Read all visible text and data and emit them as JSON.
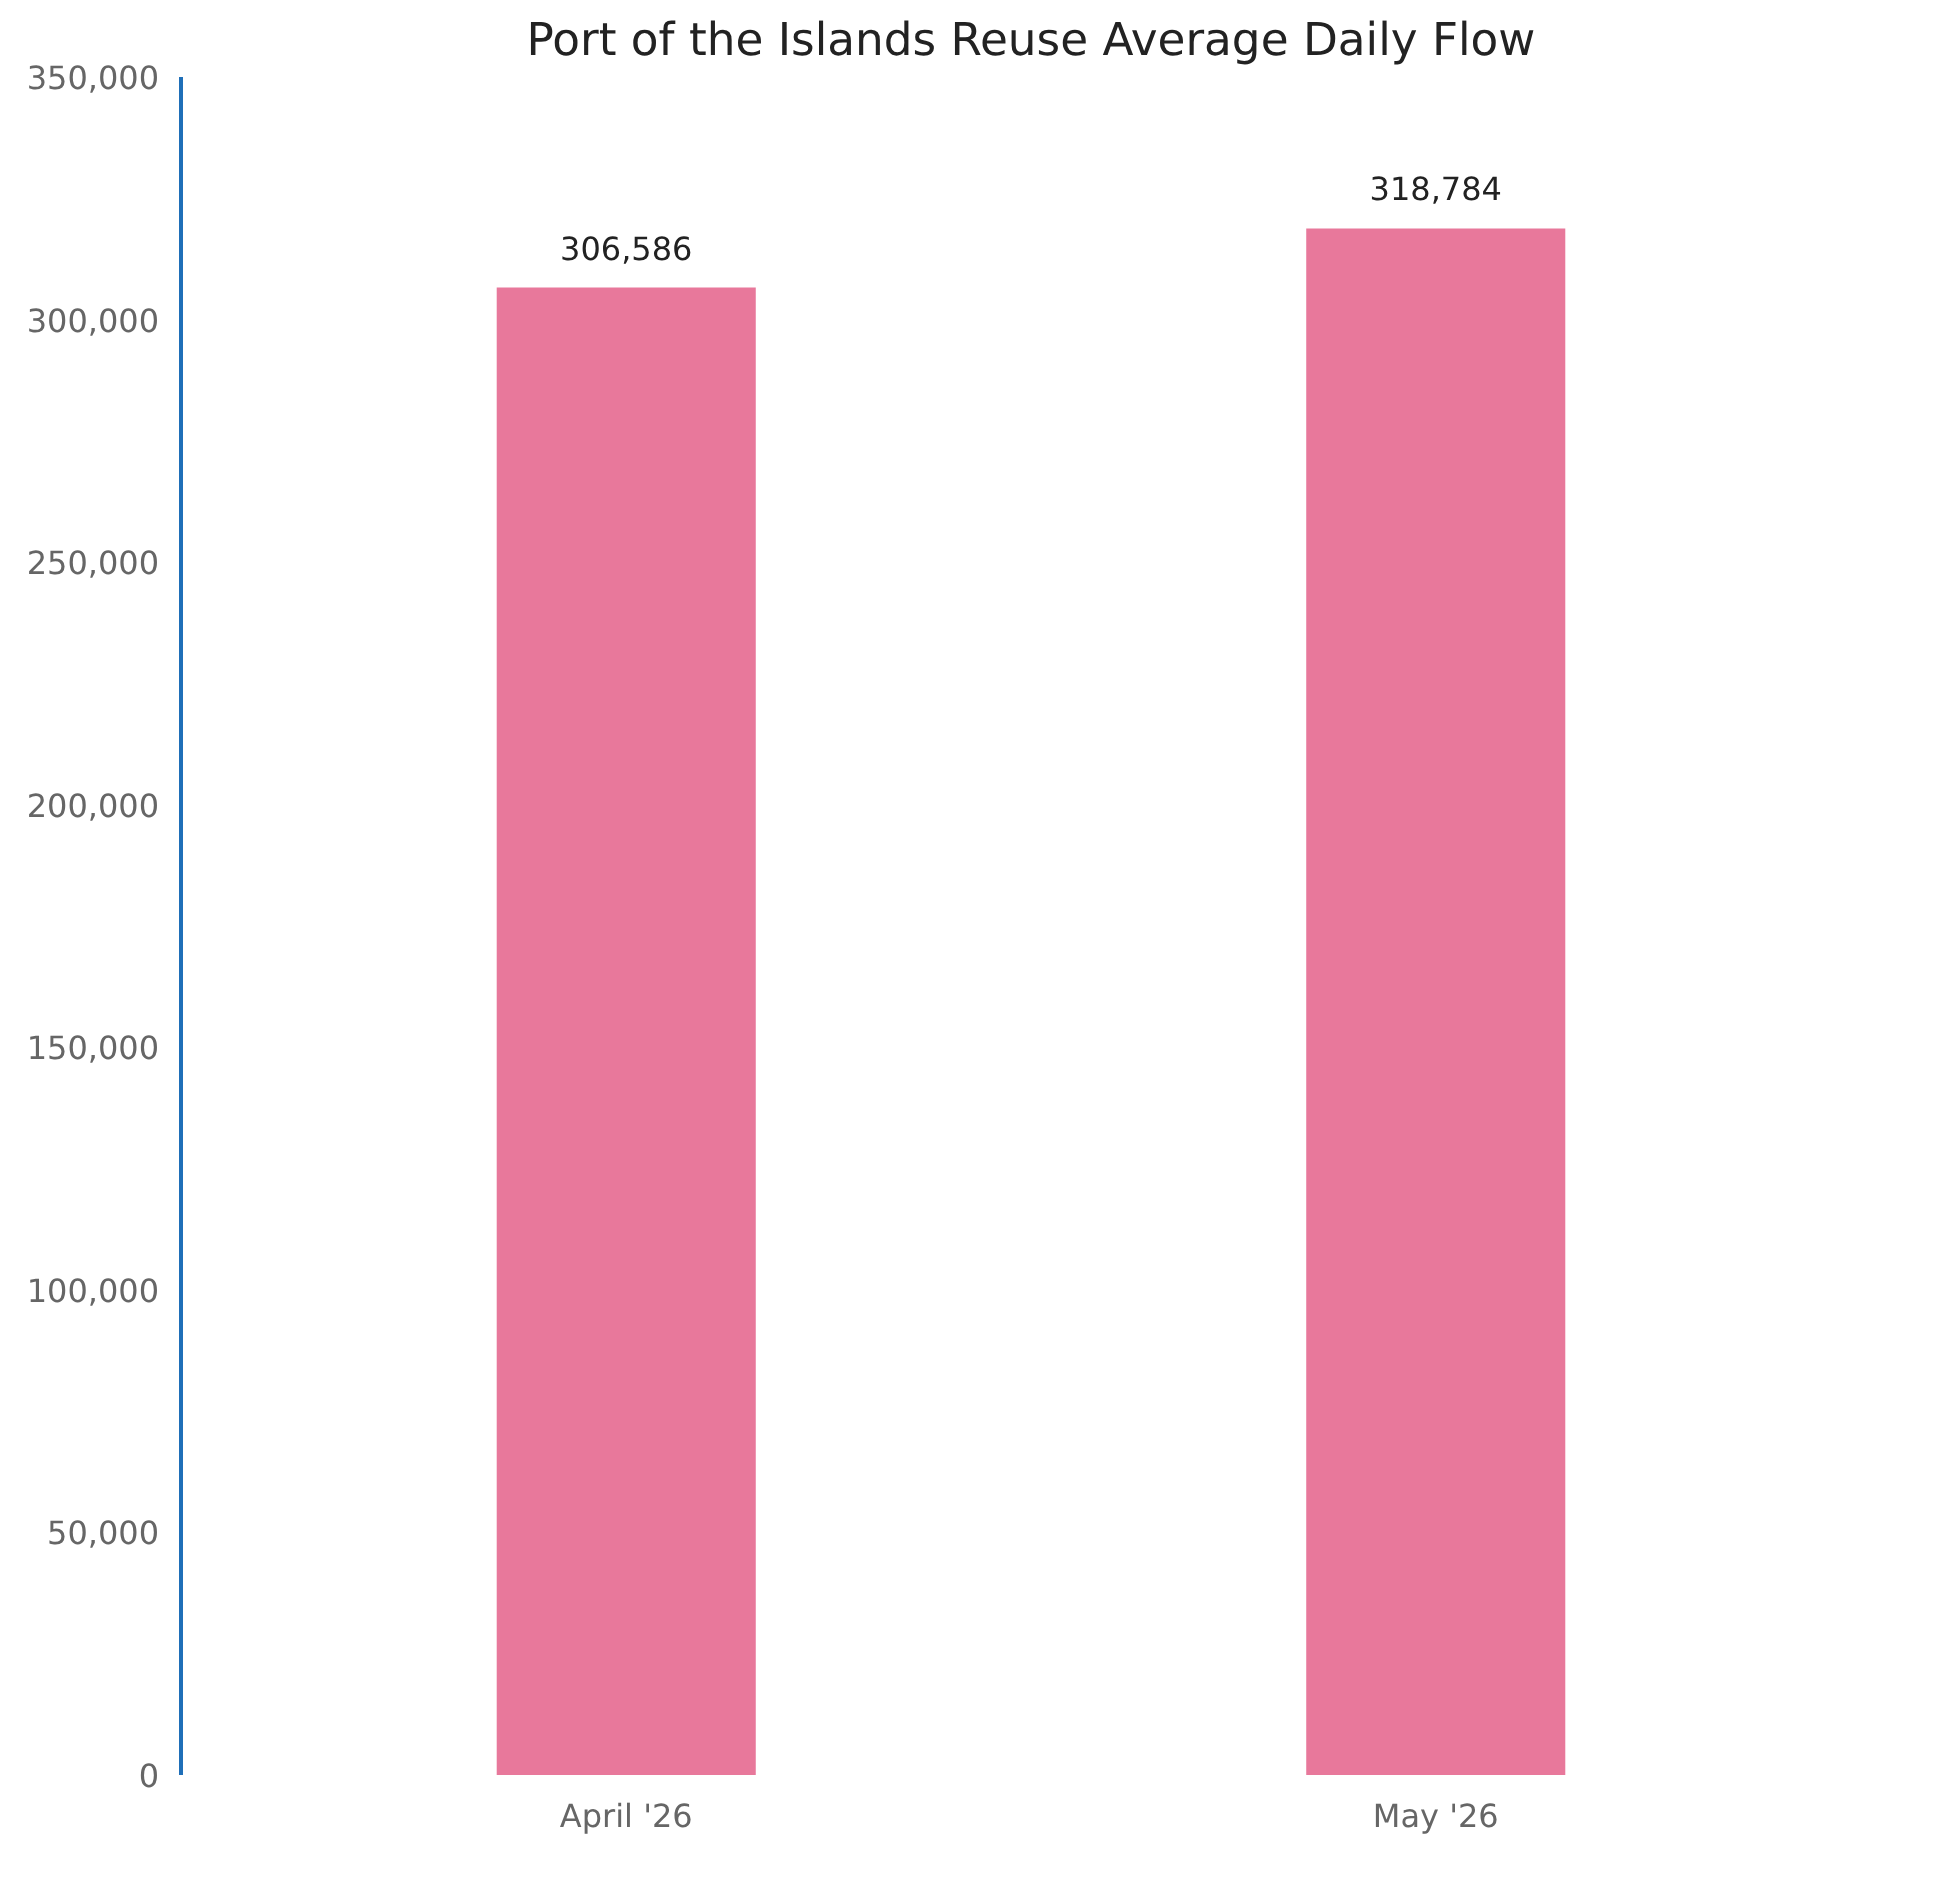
{
  "chart_data": {
    "type": "bar",
    "title": "Port of the Islands Reuse Average Daily Flow",
    "categories": [
      "April '26",
      "May '26"
    ],
    "values": [
      306586,
      318784
    ],
    "value_labels": [
      "306,586",
      "318,784"
    ],
    "color": "#e8789b",
    "ylim": [
      0,
      350000
    ],
    "yticks": [
      {
        "value": 0,
        "label": "0"
      },
      {
        "value": 50000,
        "label": "50,000"
      },
      {
        "value": 100000,
        "label": "100,000"
      },
      {
        "value": 150000,
        "label": "150,000"
      },
      {
        "value": 200000,
        "label": "200,000"
      },
      {
        "value": 250000,
        "label": "250,000"
      },
      {
        "value": 300000,
        "label": "300,000"
      },
      {
        "value": 350000,
        "label": "350,000"
      }
    ],
    "grid": false
  }
}
